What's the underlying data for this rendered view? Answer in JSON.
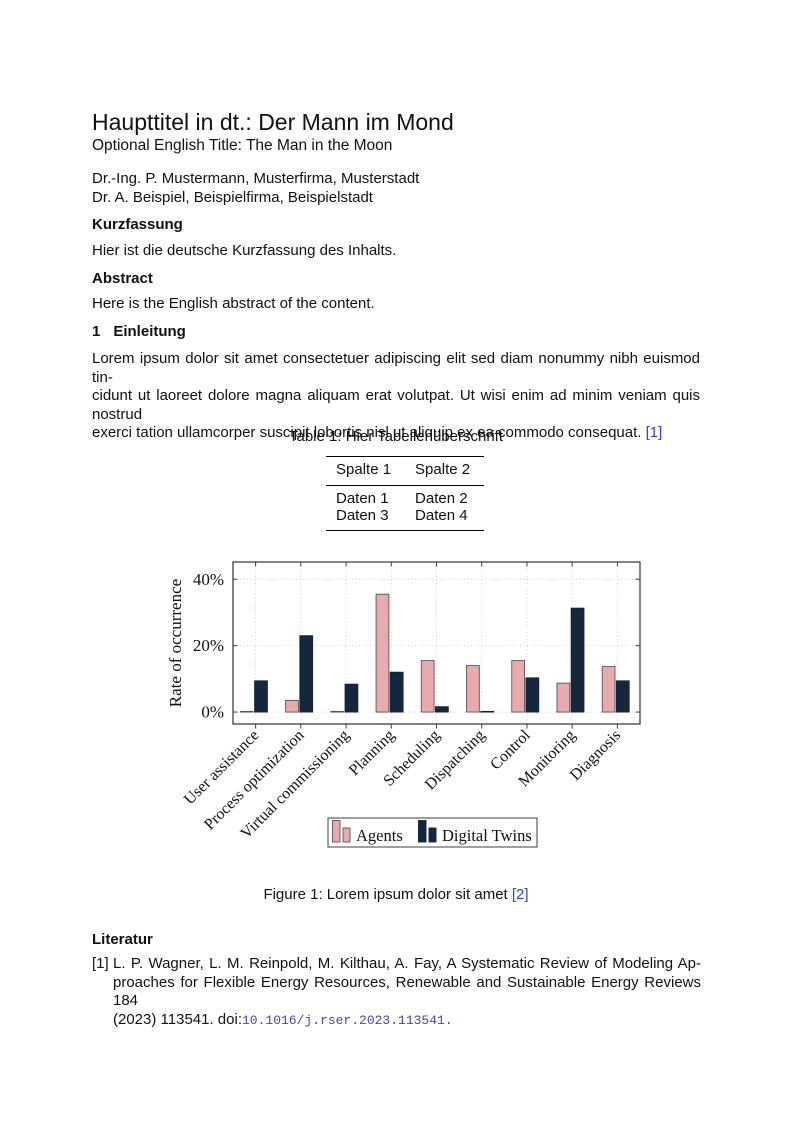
{
  "document": {
    "title_de": "Haupttitel in dt.: Der Mann im Mond",
    "title_en": "Optional English Title: The Man in the Moon",
    "authors": [
      "Dr.-Ing. P. Mustermann, Musterfirma, Musterstadt",
      "Dr. A. Beispiel, Beispielfirma, Beispielstadt"
    ],
    "kurzfassung": {
      "heading": "Kurzfassung",
      "text": "Hier ist die deutsche Kurzfassung des Inhalts."
    },
    "abstract": {
      "heading": "Abstract",
      "text": "Here is the English abstract of the content."
    },
    "einleitung": {
      "number": "1",
      "heading": "Einleitung",
      "lines": [
        "Lorem ipsum dolor sit amet consectetuer adipiscing elit sed diam nonummy nibh euismod tin-",
        "cidunt ut laoreet dolore magna aliquam erat volutpat. Ut wisi enim ad minim veniam quis nostrud",
        "exerci tation ullamcorper suscipit lobortis nisl ut aliquip ex ea commodo consequat."
      ],
      "citation": "[1]"
    }
  },
  "table": {
    "caption": "Table 1: Hier Tabellenüberschrift",
    "headers": [
      "Spalte 1",
      "Spalte 2"
    ],
    "rows": [
      [
        "Daten 1",
        "Daten 2"
      ],
      [
        "Daten 3",
        "Daten 4"
      ]
    ]
  },
  "chart_data": {
    "type": "bar",
    "title": "",
    "xlabel": "",
    "ylabel": "Rate of occurrence",
    "categories": [
      "User assistance",
      "Process optimization",
      "Virtual commissioning",
      "Planning",
      "Scheduling",
      "Dispatching",
      "Control",
      "Monitoring",
      "Diagnosis"
    ],
    "series": [
      {
        "name": "Agents",
        "color": "#e7abae",
        "stroke": "#5c5258",
        "values": [
          0.2,
          3.5,
          0.2,
          35.5,
          15.5,
          14,
          15.5,
          8.7,
          13.7
        ]
      },
      {
        "name": "Digital Twins",
        "color": "#14273e",
        "stroke": "#11233a",
        "values": [
          9.4,
          23,
          8.4,
          12,
          1.6,
          0.2,
          10.3,
          31.3,
          9.4
        ]
      }
    ],
    "ylim": [
      -3.6,
      45.2
    ],
    "yticks": [
      0,
      20,
      40
    ],
    "ytick_labels": [
      "0%",
      "20%",
      "40%"
    ],
    "grid": "dotted-both-axes",
    "legend_position": "below-plot-boxed",
    "unit": "percent"
  },
  "figure": {
    "caption": "Figure 1: Lorem ipsum dolor sit amet",
    "citation": "[2]"
  },
  "references": {
    "heading": "Literatur",
    "items": [
      {
        "label": "[1]",
        "line1": "L. P. Wagner, L. M. Reinpold, M. Kilthau, A. Fay, A Systematic Review of Modeling Ap-",
        "line2": "proaches for Flexible Energy Resources, Renewable and Sustainable Energy Reviews 184",
        "line3_prefix": "(2023) 113541. doi:",
        "doi": "10.1016/j.rser.2023.113541."
      }
    ]
  },
  "colors": {
    "citation_link": "#3b43c4",
    "doi_link": "#4646ad",
    "bar_agents": "#e7abae",
    "bar_digital_twins": "#14273e",
    "axis_frame": "#3f3f3f",
    "gridline": "#c9c9c9"
  }
}
